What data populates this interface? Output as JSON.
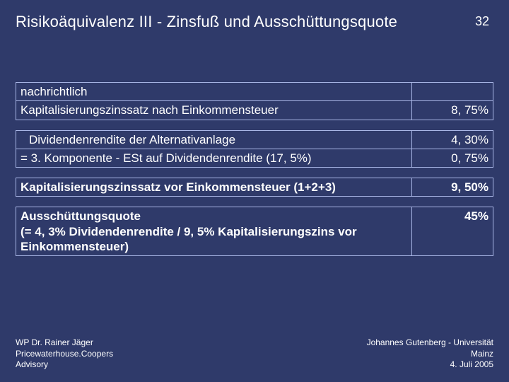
{
  "slide": {
    "title": "Risikoäquivalenz III - Zinsfuß und Ausschüttungsquote",
    "page_number": "32",
    "background_color": "#2f3a6a",
    "text_color": "#ffffff",
    "table_border_color": "#a9b6e6",
    "title_fontsize": 22,
    "body_fontsize": 17,
    "footer_fontsize": 12
  },
  "blocks": [
    {
      "rows": [
        {
          "label": "nachrichtlich",
          "value": "",
          "bold": false
        },
        {
          "label": "Kapitalisierungszinssatz nach Einkommensteuer",
          "value": "8, 75%",
          "bold": false
        }
      ]
    },
    {
      "rows": [
        {
          "label": "Dividendenrendite der Alternativanlage",
          "value": "4, 30%",
          "bold": false,
          "indent": true
        },
        {
          "label": "= 3. Komponente - ESt auf Dividendenrendite (17, 5%)",
          "value": "0, 75%",
          "bold": false
        }
      ]
    },
    {
      "rows": [
        {
          "label": "Kapitalisierungszinssatz vor Einkommensteuer (1+2+3)",
          "value": "9, 50%",
          "bold": true
        }
      ]
    },
    {
      "rows": [
        {
          "label": "Ausschüttungsquote\n(= 4, 3% Dividendenrendite / 9, 5% Kapitalisierungszins vor Einkommensteuer)",
          "value": "45%",
          "bold": true
        }
      ]
    }
  ],
  "footer": {
    "left": {
      "line1": "WP Dr. Rainer Jäger",
      "line2": "Pricewaterhouse.Coopers",
      "line3": "Advisory"
    },
    "right": {
      "line1": "Johannes Gutenberg - Universität",
      "line2": "Mainz",
      "line3": "4. Juli 2005"
    }
  }
}
